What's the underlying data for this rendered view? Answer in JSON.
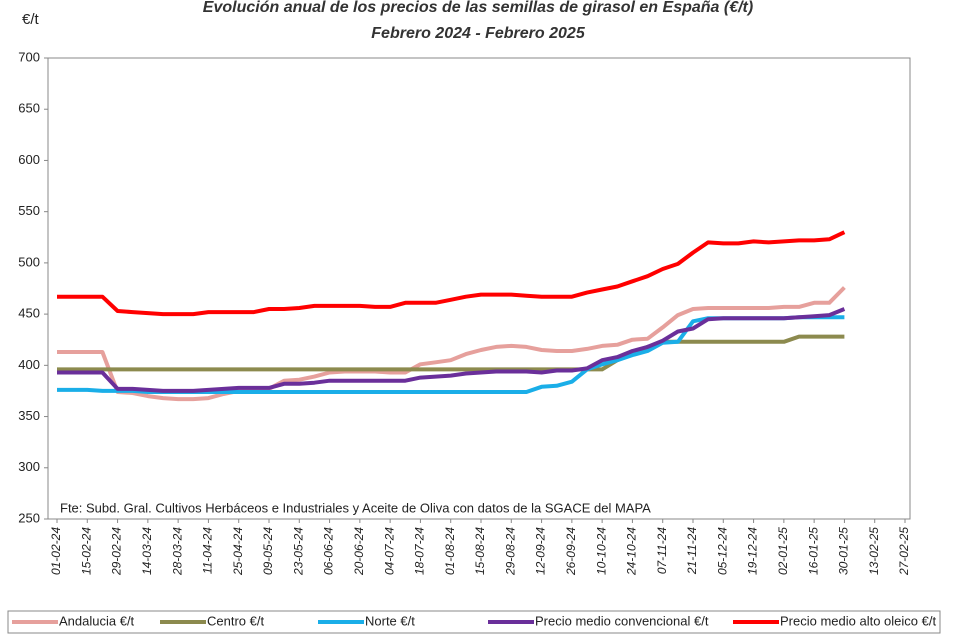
{
  "chart_data": {
    "type": "line",
    "title": "Evolución anual de los precios de las semillas de girasol en España (€/t)",
    "subtitle": "Febrero 2024 - Febrero 2025",
    "y_label": "€/t",
    "annotation": "Fte: Subd. Gral. Cultivos Herbáceos e Industriales y Aceite de Oliva con datos de la SGACE del MAPA",
    "categories": [
      "01-02-24",
      null,
      "15-02-24",
      null,
      "29-02-24",
      null,
      "14-03-24",
      null,
      "28-03-24",
      null,
      "11-04-24",
      null,
      "25-04-24",
      null,
      "09-05-24",
      null,
      "23-05-24",
      null,
      "06-06-24",
      null,
      "20-06-24",
      null,
      "04-07-24",
      null,
      "18-07-24",
      null,
      "01-08-24",
      null,
      "15-08-24",
      null,
      "29-08-24",
      null,
      "12-09-24",
      null,
      "26-09-24",
      null,
      "10-10-24",
      null,
      "24-10-24",
      null,
      "07-11-24",
      null,
      "21-11-24",
      null,
      "05-12-24",
      null,
      "19-12-24",
      null,
      "02-01-25",
      null,
      "16-01-25",
      null,
      "30-01-25",
      null,
      "13-02-25",
      null,
      "27-02-25"
    ],
    "ylim": [
      250,
      700
    ],
    "yticks": [
      250,
      300,
      350,
      400,
      450,
      500,
      550,
      600,
      650,
      700
    ],
    "legend": "bottom",
    "series": [
      {
        "name": "Andalucia €/t",
        "color": "#e6a09c",
        "values": [
          413,
          413,
          413,
          413,
          374,
          373,
          370,
          368,
          367,
          367,
          368,
          372,
          375,
          376,
          377,
          385,
          386,
          389,
          393,
          394,
          394,
          394,
          393,
          393,
          401,
          403,
          405,
          411,
          415,
          418,
          419,
          418,
          415,
          414,
          414,
          416,
          419,
          420,
          425,
          426,
          437,
          449,
          455,
          456,
          456,
          456,
          456,
          456,
          457,
          457,
          461,
          461,
          476,
          null,
          null,
          null,
          null
        ]
      },
      {
        "name": "Centro €/t",
        "color": "#8c8a4e",
        "values": [
          396,
          396,
          396,
          396,
          396,
          396,
          396,
          396,
          396,
          396,
          396,
          396,
          396,
          396,
          396,
          396,
          396,
          396,
          396,
          396,
          396,
          396,
          396,
          396,
          396,
          396,
          396,
          396,
          396,
          396,
          396,
          396,
          396,
          396,
          396,
          396,
          396,
          405,
          412,
          418,
          423,
          423,
          423,
          423,
          423,
          423,
          423,
          423,
          423,
          428,
          428,
          428,
          428,
          null,
          null,
          null,
          null
        ]
      },
      {
        "name": "Norte €/t",
        "color": "#1aaee8",
        "values": [
          376,
          376,
          376,
          375,
          375,
          375,
          374,
          374,
          374,
          374,
          374,
          374,
          374,
          374,
          374,
          374,
          374,
          374,
          374,
          374,
          374,
          374,
          374,
          374,
          374,
          374,
          374,
          374,
          374,
          374,
          374,
          374,
          379,
          380,
          384,
          396,
          401,
          405,
          410,
          414,
          422,
          423,
          443,
          446,
          446,
          446,
          446,
          446,
          446,
          447,
          447,
          447,
          447,
          null,
          null,
          null,
          null
        ]
      },
      {
        "name": "Precio medio convencional €/t",
        "color": "#6a2f9a",
        "values": [
          393,
          393,
          393,
          393,
          377,
          377,
          376,
          375,
          375,
          375,
          376,
          377,
          378,
          378,
          378,
          382,
          382,
          383,
          385,
          385,
          385,
          385,
          385,
          385,
          388,
          389,
          390,
          392,
          393,
          394,
          394,
          394,
          393,
          395,
          395,
          397,
          405,
          408,
          414,
          418,
          424,
          433,
          436,
          445,
          446,
          446,
          446,
          446,
          446,
          447,
          448,
          449,
          455,
          null,
          null,
          null,
          null
        ]
      },
      {
        "name": "Precio medio alto oleico €/t",
        "color": "#ff0000",
        "values": [
          467,
          467,
          467,
          467,
          453,
          452,
          451,
          450,
          450,
          450,
          452,
          452,
          452,
          452,
          455,
          455,
          456,
          458,
          458,
          458,
          458,
          457,
          457,
          461,
          461,
          461,
          464,
          467,
          469,
          469,
          469,
          468,
          467,
          467,
          467,
          471,
          474,
          477,
          482,
          487,
          494,
          499,
          510,
          520,
          519,
          519,
          521,
          520,
          521,
          522,
          522,
          523,
          530,
          null,
          null,
          null,
          null
        ]
      }
    ]
  }
}
